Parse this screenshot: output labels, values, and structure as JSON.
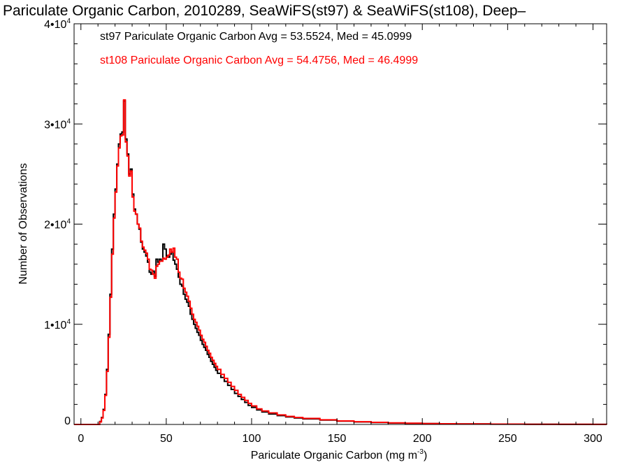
{
  "chart_data": {
    "type": "line",
    "title": "Pariculate Organic Carbon, 2010289, SeaWiFS(st97) & SeaWiFS(st108), Deep–",
    "xlabel": "Pariculate Organic Carbon (mg m",
    "xlabel_exp": "-3",
    "xlabel_close": ")",
    "ylabel": "Number of Observations",
    "xlim": [
      -4,
      308
    ],
    "ylim": [
      0,
      40000
    ],
    "x_ticks": [
      {
        "value": 0,
        "label": "0"
      },
      {
        "value": 50,
        "label": "50"
      },
      {
        "value": 100,
        "label": "100"
      },
      {
        "value": 150,
        "label": "150"
      },
      {
        "value": 200,
        "label": "200"
      },
      {
        "value": 250,
        "label": "250"
      },
      {
        "value": 300,
        "label": "300"
      }
    ],
    "y_ticks": [
      {
        "value": 0,
        "base": "0",
        "exp": ""
      },
      {
        "value": 10000,
        "base": "1•10",
        "exp": "4"
      },
      {
        "value": 20000,
        "base": "2•10",
        "exp": "4"
      },
      {
        "value": 30000,
        "base": "3•10",
        "exp": "4"
      },
      {
        "value": 40000,
        "base": "4•10",
        "exp": "4"
      }
    ],
    "grid": false,
    "legend_placement": "top-left",
    "series": [
      {
        "name": "st97",
        "color": "#000000",
        "stats_text": "st97 Pariculate Organic Carbon Avg = 53.5524, Med = 45.0999",
        "points": [
          [
            -4,
            0
          ],
          [
            9,
            0
          ],
          [
            11,
            300
          ],
          [
            12,
            700
          ],
          [
            13,
            1500
          ],
          [
            14,
            3000
          ],
          [
            15,
            5500
          ],
          [
            16,
            9000
          ],
          [
            17,
            13000
          ],
          [
            18,
            17500
          ],
          [
            19,
            21000
          ],
          [
            20,
            23500
          ],
          [
            21,
            26000
          ],
          [
            22,
            28000
          ],
          [
            23,
            29000
          ],
          [
            24,
            29200
          ],
          [
            25,
            32300
          ],
          [
            26,
            28500
          ],
          [
            27,
            27000
          ],
          [
            28,
            25000
          ],
          [
            29,
            25500
          ],
          [
            30,
            23000
          ],
          [
            31,
            21500
          ],
          [
            32,
            21000
          ],
          [
            33,
            20000
          ],
          [
            34,
            19500
          ],
          [
            35,
            18200
          ],
          [
            36,
            17500
          ],
          [
            37,
            17200
          ],
          [
            38,
            16800
          ],
          [
            39,
            16200
          ],
          [
            40,
            15200
          ],
          [
            41,
            15000
          ],
          [
            42,
            15300
          ],
          [
            43,
            14800
          ],
          [
            44,
            16500
          ],
          [
            45,
            16200
          ],
          [
            46,
            16500
          ],
          [
            47,
            16300
          ],
          [
            48,
            18000
          ],
          [
            49,
            17500
          ],
          [
            50,
            16800
          ],
          [
            51,
            16700
          ],
          [
            52,
            17000
          ],
          [
            53,
            17200
          ],
          [
            54,
            16400
          ],
          [
            55,
            16000
          ],
          [
            56,
            15500
          ],
          [
            57,
            14700
          ],
          [
            58,
            14000
          ],
          [
            59,
            13800
          ],
          [
            60,
            13000
          ],
          [
            61,
            12500
          ],
          [
            62,
            12200
          ],
          [
            63,
            11800
          ],
          [
            64,
            11000
          ],
          [
            65,
            10500
          ],
          [
            66,
            10000
          ],
          [
            67,
            9600
          ],
          [
            68,
            9200
          ],
          [
            69,
            8900
          ],
          [
            70,
            8400
          ],
          [
            71,
            8000
          ],
          [
            72,
            7700
          ],
          [
            73,
            7400
          ],
          [
            74,
            7000
          ],
          [
            75,
            6700
          ],
          [
            76,
            6300
          ],
          [
            77,
            6000
          ],
          [
            78,
            5700
          ],
          [
            79,
            5400
          ],
          [
            80,
            5100
          ],
          [
            82,
            4700
          ],
          [
            84,
            4300
          ],
          [
            86,
            3900
          ],
          [
            88,
            3500
          ],
          [
            90,
            3100
          ],
          [
            92,
            2800
          ],
          [
            94,
            2500
          ],
          [
            96,
            2200
          ],
          [
            98,
            1900
          ],
          [
            100,
            1700
          ],
          [
            103,
            1450
          ],
          [
            106,
            1250
          ],
          [
            110,
            1050
          ],
          [
            115,
            880
          ],
          [
            120,
            750
          ],
          [
            125,
            650
          ],
          [
            130,
            560
          ],
          [
            140,
            430
          ],
          [
            150,
            330
          ],
          [
            160,
            250
          ],
          [
            170,
            190
          ],
          [
            180,
            140
          ],
          [
            190,
            110
          ],
          [
            200,
            85
          ],
          [
            210,
            65
          ],
          [
            220,
            50
          ],
          [
            240,
            30
          ],
          [
            260,
            18
          ],
          [
            280,
            10
          ],
          [
            300,
            5
          ],
          [
            308,
            0
          ]
        ]
      },
      {
        "name": "st108",
        "color": "#ff0000",
        "stats_text": "st108 Pariculate Organic Carbon Avg = 54.4756, Med = 46.4999",
        "points": [
          [
            -4,
            0
          ],
          [
            9,
            0
          ],
          [
            11,
            250
          ],
          [
            12,
            650
          ],
          [
            13,
            1400
          ],
          [
            14,
            2900
          ],
          [
            15,
            5300
          ],
          [
            16,
            8700
          ],
          [
            17,
            12700
          ],
          [
            18,
            17000
          ],
          [
            19,
            20600
          ],
          [
            20,
            23200
          ],
          [
            21,
            25800
          ],
          [
            22,
            27600
          ],
          [
            23,
            28800
          ],
          [
            24,
            28900
          ],
          [
            25,
            32400
          ],
          [
            26,
            28200
          ],
          [
            27,
            26800
          ],
          [
            28,
            24800
          ],
          [
            29,
            25300
          ],
          [
            30,
            22700
          ],
          [
            31,
            21300
          ],
          [
            32,
            21000
          ],
          [
            33,
            20000
          ],
          [
            34,
            19600
          ],
          [
            35,
            18300
          ],
          [
            36,
            17700
          ],
          [
            37,
            17400
          ],
          [
            38,
            17100
          ],
          [
            39,
            16500
          ],
          [
            40,
            15500
          ],
          [
            41,
            15400
          ],
          [
            42,
            15000
          ],
          [
            43,
            14600
          ],
          [
            44,
            15800
          ],
          [
            45,
            16000
          ],
          [
            46,
            16300
          ],
          [
            47,
            16300
          ],
          [
            48,
            16600
          ],
          [
            49,
            16500
          ],
          [
            50,
            16700
          ],
          [
            51,
            16900
          ],
          [
            52,
            17500
          ],
          [
            53,
            17200
          ],
          [
            54,
            17600
          ],
          [
            55,
            16700
          ],
          [
            56,
            16500
          ],
          [
            57,
            15200
          ],
          [
            58,
            14600
          ],
          [
            59,
            14500
          ],
          [
            60,
            13600
          ],
          [
            61,
            13200
          ],
          [
            62,
            12800
          ],
          [
            63,
            12300
          ],
          [
            64,
            11600
          ],
          [
            65,
            11000
          ],
          [
            66,
            10500
          ],
          [
            67,
            10200
          ],
          [
            68,
            9800
          ],
          [
            69,
            9400
          ],
          [
            70,
            8900
          ],
          [
            71,
            8500
          ],
          [
            72,
            8200
          ],
          [
            73,
            7800
          ],
          [
            74,
            7400
          ],
          [
            75,
            7100
          ],
          [
            76,
            6700
          ],
          [
            77,
            6400
          ],
          [
            78,
            6100
          ],
          [
            79,
            5800
          ],
          [
            80,
            5500
          ],
          [
            82,
            5000
          ],
          [
            84,
            4600
          ],
          [
            86,
            4200
          ],
          [
            88,
            3800
          ],
          [
            90,
            3400
          ],
          [
            92,
            3000
          ],
          [
            94,
            2700
          ],
          [
            96,
            2400
          ],
          [
            98,
            2100
          ],
          [
            100,
            1850
          ],
          [
            103,
            1550
          ],
          [
            106,
            1350
          ],
          [
            110,
            1150
          ],
          [
            115,
            950
          ],
          [
            120,
            800
          ],
          [
            125,
            700
          ],
          [
            130,
            600
          ],
          [
            140,
            460
          ],
          [
            150,
            350
          ],
          [
            160,
            270
          ],
          [
            170,
            210
          ],
          [
            180,
            160
          ],
          [
            190,
            120
          ],
          [
            200,
            90
          ],
          [
            210,
            70
          ],
          [
            220,
            55
          ],
          [
            240,
            33
          ],
          [
            260,
            20
          ],
          [
            280,
            11
          ],
          [
            300,
            6
          ],
          [
            308,
            0
          ]
        ]
      }
    ]
  }
}
